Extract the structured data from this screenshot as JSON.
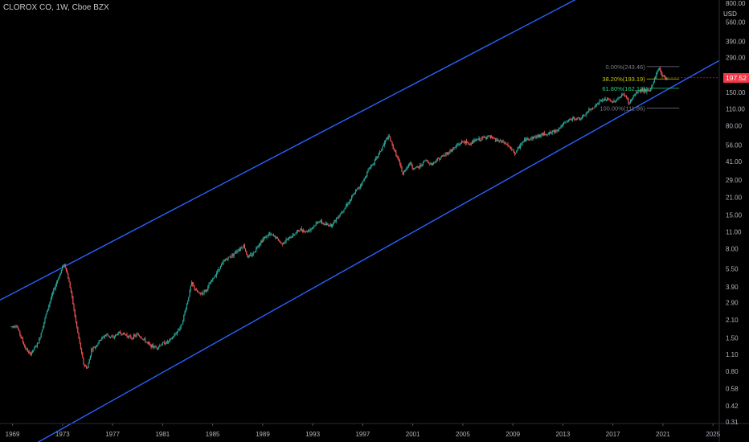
{
  "header": {
    "title": "CLOROX CO, 1W, Cboe BZX",
    "currency": "USD"
  },
  "last_price": {
    "label": "197.52",
    "value": 197.52,
    "color": "#f23645"
  },
  "colors": {
    "background": "#000000",
    "up": "#26a69a",
    "down": "#ef5350",
    "channel": "#2962ff",
    "axis_text": "#b2b5be"
  },
  "chart_data": {
    "type": "candlestick",
    "title": "CLOROX CO, 1W, Cboe BZX",
    "y_scale": "log",
    "ylim": [
      0.29,
      800
    ],
    "xlim": [
      1968.0,
      2025.5
    ],
    "x_ticks": [
      {
        "label": "1969",
        "value": 1969
      },
      {
        "label": "1973",
        "value": 1973
      },
      {
        "label": "1977",
        "value": 1977
      },
      {
        "label": "1981",
        "value": 1981
      },
      {
        "label": "1985",
        "value": 1985
      },
      {
        "label": "1989",
        "value": 1989
      },
      {
        "label": "1993",
        "value": 1993
      },
      {
        "label": "1997",
        "value": 1997
      },
      {
        "label": "2001",
        "value": 2001
      },
      {
        "label": "2005",
        "value": 2005
      },
      {
        "label": "2009",
        "value": 2009
      },
      {
        "label": "2013",
        "value": 2013
      },
      {
        "label": "2017",
        "value": 2017
      },
      {
        "label": "2021",
        "value": 2021
      },
      {
        "label": "2025",
        "value": 2025
      }
    ],
    "y_ticks": [
      {
        "label": "800.00",
        "value": 800
      },
      {
        "label": "560.00",
        "value": 560
      },
      {
        "label": "390.00",
        "value": 390
      },
      {
        "label": "290.00",
        "value": 290
      },
      {
        "label": "200.00",
        "value": 200
      },
      {
        "label": "150.00",
        "value": 150
      },
      {
        "label": "110.00",
        "value": 110
      },
      {
        "label": "80.00",
        "value": 80
      },
      {
        "label": "56.00",
        "value": 56
      },
      {
        "label": "41.00",
        "value": 41
      },
      {
        "label": "29.00",
        "value": 29
      },
      {
        "label": "21.00",
        "value": 21
      },
      {
        "label": "15.00",
        "value": 15
      },
      {
        "label": "11.00",
        "value": 11
      },
      {
        "label": "8.00",
        "value": 8
      },
      {
        "label": "5.50",
        "value": 5.5
      },
      {
        "label": "3.90",
        "value": 3.9
      },
      {
        "label": "2.90",
        "value": 2.9
      },
      {
        "label": "2.10",
        "value": 2.1
      },
      {
        "label": "1.50",
        "value": 1.5
      },
      {
        "label": "1.10",
        "value": 1.1
      },
      {
        "label": "0.80",
        "value": 0.8
      },
      {
        "label": "0.58",
        "value": 0.58
      },
      {
        "label": "0.42",
        "value": 0.42
      },
      {
        "label": "0.31",
        "value": 0.31
      }
    ],
    "price_path": [
      {
        "x": 1968.9,
        "y": 1.85
      },
      {
        "x": 1969.3,
        "y": 1.9
      },
      {
        "x": 1969.6,
        "y": 1.6
      },
      {
        "x": 1970.0,
        "y": 1.25
      },
      {
        "x": 1970.4,
        "y": 1.1
      },
      {
        "x": 1970.8,
        "y": 1.25
      },
      {
        "x": 1971.1,
        "y": 1.4
      },
      {
        "x": 1971.5,
        "y": 2.0
      },
      {
        "x": 1972.0,
        "y": 3.0
      },
      {
        "x": 1972.5,
        "y": 4.2
      },
      {
        "x": 1972.9,
        "y": 5.3
      },
      {
        "x": 1973.1,
        "y": 6.1
      },
      {
        "x": 1973.3,
        "y": 5.4
      },
      {
        "x": 1973.7,
        "y": 3.5
      },
      {
        "x": 1974.0,
        "y": 2.2
      },
      {
        "x": 1974.4,
        "y": 1.3
      },
      {
        "x": 1974.7,
        "y": 0.9
      },
      {
        "x": 1975.0,
        "y": 0.85
      },
      {
        "x": 1975.3,
        "y": 1.2
      },
      {
        "x": 1975.7,
        "y": 1.3
      },
      {
        "x": 1976.0,
        "y": 1.45
      },
      {
        "x": 1976.5,
        "y": 1.6
      },
      {
        "x": 1977.0,
        "y": 1.5
      },
      {
        "x": 1977.5,
        "y": 1.65
      },
      {
        "x": 1978.0,
        "y": 1.6
      },
      {
        "x": 1978.5,
        "y": 1.5
      },
      {
        "x": 1979.0,
        "y": 1.6
      },
      {
        "x": 1979.5,
        "y": 1.45
      },
      {
        "x": 1980.0,
        "y": 1.3
      },
      {
        "x": 1980.5,
        "y": 1.25
      },
      {
        "x": 1981.0,
        "y": 1.35
      },
      {
        "x": 1981.5,
        "y": 1.4
      },
      {
        "x": 1982.0,
        "y": 1.6
      },
      {
        "x": 1982.5,
        "y": 1.9
      },
      {
        "x": 1983.0,
        "y": 3.0
      },
      {
        "x": 1983.3,
        "y": 4.2
      },
      {
        "x": 1983.7,
        "y": 3.6
      },
      {
        "x": 1984.0,
        "y": 3.4
      },
      {
        "x": 1984.5,
        "y": 3.7
      },
      {
        "x": 1985.0,
        "y": 4.5
      },
      {
        "x": 1985.5,
        "y": 5.5
      },
      {
        "x": 1986.0,
        "y": 6.5
      },
      {
        "x": 1986.5,
        "y": 7.0
      },
      {
        "x": 1987.0,
        "y": 7.8
      },
      {
        "x": 1987.5,
        "y": 8.5
      },
      {
        "x": 1987.8,
        "y": 6.8
      },
      {
        "x": 1988.2,
        "y": 7.2
      },
      {
        "x": 1988.6,
        "y": 8.5
      },
      {
        "x": 1989.0,
        "y": 9.5
      },
      {
        "x": 1989.5,
        "y": 10.5
      },
      {
        "x": 1990.0,
        "y": 10.0
      },
      {
        "x": 1990.5,
        "y": 8.8
      },
      {
        "x": 1991.0,
        "y": 9.5
      },
      {
        "x": 1991.5,
        "y": 10.5
      },
      {
        "x": 1992.0,
        "y": 11.5
      },
      {
        "x": 1992.5,
        "y": 11.0
      },
      {
        "x": 1993.0,
        "y": 12.0
      },
      {
        "x": 1993.5,
        "y": 13.5
      },
      {
        "x": 1994.0,
        "y": 12.5
      },
      {
        "x": 1994.5,
        "y": 12.5
      },
      {
        "x": 1995.0,
        "y": 14.5
      },
      {
        "x": 1995.5,
        "y": 17.0
      },
      {
        "x": 1996.0,
        "y": 20.0
      },
      {
        "x": 1996.5,
        "y": 24.0
      },
      {
        "x": 1997.0,
        "y": 28.0
      },
      {
        "x": 1997.5,
        "y": 36.0
      },
      {
        "x": 1998.0,
        "y": 42.0
      },
      {
        "x": 1998.5,
        "y": 52.0
      },
      {
        "x": 1998.9,
        "y": 63.0
      },
      {
        "x": 1999.1,
        "y": 65.0
      },
      {
        "x": 1999.4,
        "y": 54.0
      },
      {
        "x": 1999.7,
        "y": 46.0
      },
      {
        "x": 2000.0,
        "y": 38.0
      },
      {
        "x": 2000.2,
        "y": 32.0
      },
      {
        "x": 2000.5,
        "y": 37.0
      },
      {
        "x": 2000.8,
        "y": 40.0
      },
      {
        "x": 2001.0,
        "y": 36.0
      },
      {
        "x": 2001.5,
        "y": 37.0
      },
      {
        "x": 2002.0,
        "y": 42.0
      },
      {
        "x": 2002.5,
        "y": 39.0
      },
      {
        "x": 2003.0,
        "y": 43.0
      },
      {
        "x": 2003.5,
        "y": 46.0
      },
      {
        "x": 2004.0,
        "y": 50.0
      },
      {
        "x": 2004.5,
        "y": 55.0
      },
      {
        "x": 2005.0,
        "y": 60.0
      },
      {
        "x": 2005.5,
        "y": 57.0
      },
      {
        "x": 2006.0,
        "y": 61.0
      },
      {
        "x": 2006.5,
        "y": 63.0
      },
      {
        "x": 2007.0,
        "y": 66.0
      },
      {
        "x": 2007.5,
        "y": 62.0
      },
      {
        "x": 2008.0,
        "y": 60.0
      },
      {
        "x": 2008.5,
        "y": 57.0
      },
      {
        "x": 2008.9,
        "y": 51.0
      },
      {
        "x": 2009.2,
        "y": 48.0
      },
      {
        "x": 2009.6,
        "y": 56.0
      },
      {
        "x": 2010.0,
        "y": 62.0
      },
      {
        "x": 2010.5,
        "y": 64.0
      },
      {
        "x": 2011.0,
        "y": 66.0
      },
      {
        "x": 2011.5,
        "y": 69.0
      },
      {
        "x": 2012.0,
        "y": 70.0
      },
      {
        "x": 2012.5,
        "y": 74.0
      },
      {
        "x": 2013.0,
        "y": 82.0
      },
      {
        "x": 2013.5,
        "y": 90.0
      },
      {
        "x": 2014.0,
        "y": 92.0
      },
      {
        "x": 2014.5,
        "y": 92.0
      },
      {
        "x": 2015.0,
        "y": 105.0
      },
      {
        "x": 2015.5,
        "y": 115.0
      },
      {
        "x": 2016.0,
        "y": 128.0
      },
      {
        "x": 2016.5,
        "y": 132.0
      },
      {
        "x": 2017.0,
        "y": 125.0
      },
      {
        "x": 2017.5,
        "y": 136.0
      },
      {
        "x": 2017.9,
        "y": 146.0
      },
      {
        "x": 2018.3,
        "y": 122.0
      },
      {
        "x": 2018.6,
        "y": 138.0
      },
      {
        "x": 2019.0,
        "y": 154.0
      },
      {
        "x": 2019.5,
        "y": 158.0
      },
      {
        "x": 2019.9,
        "y": 152.0
      },
      {
        "x": 2020.2,
        "y": 178.0
      },
      {
        "x": 2020.5,
        "y": 218.0
      },
      {
        "x": 2020.7,
        "y": 240.0
      },
      {
        "x": 2020.9,
        "y": 208.0
      },
      {
        "x": 2021.2,
        "y": 198.0
      },
      {
        "x": 2021.4,
        "y": 197.52
      }
    ],
    "channel_lines": [
      {
        "name": "",
        "color": "#2962ff",
        "points": [
          {
            "x": 1968.0,
            "y": 3.05
          },
          {
            "x": 2025.5,
            "y": 3500
          }
        ]
      },
      {
        "name": "",
        "color": "#2962ff",
        "points": [
          {
            "x": 1968.0,
            "y": 0.142
          },
          {
            "x": 2025.5,
            "y": 273
          }
        ]
      }
    ],
    "fibonacci": {
      "x_start": 2019.7,
      "x_end": 2022.3,
      "levels": [
        {
          "label": "0.00%(243.46)",
          "value": 243.46,
          "color": "#787b86"
        },
        {
          "label": "38.20%(193.19)",
          "value": 193.19,
          "color": "#c8c800"
        },
        {
          "label": "61.80%(162.13)",
          "value": 162.13,
          "color": "#26d07c"
        },
        {
          "label": "100.00%(111.86)",
          "value": 111.86,
          "color": "#787b86"
        }
      ]
    }
  }
}
